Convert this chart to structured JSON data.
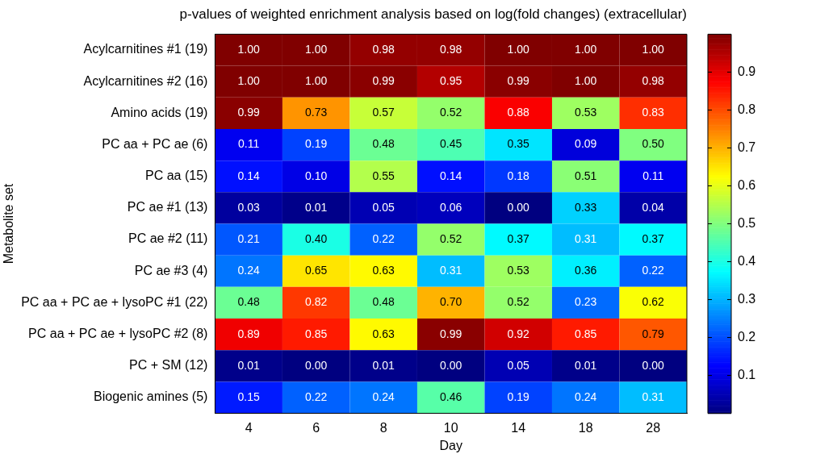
{
  "chart_data": {
    "type": "heatmap",
    "title": "p-values of weighted enrichment analysis based on log(fold changes) (extracellular)",
    "xlabel": "Day",
    "ylabel": "Metabolite set",
    "categories": [
      "4",
      "6",
      "8",
      "10",
      "14",
      "18",
      "28"
    ],
    "y_categories": [
      "Acylcarnitines #1 (19)",
      "Acylcarnitines #2 (16)",
      "Amino acids (19)",
      "PC aa + PC ae (6)",
      "PC aa (15)",
      "PC ae #1 (13)",
      "PC ae #2 (11)",
      "PC ae #3 (4)",
      "PC aa + PC ae + lysoPC #1 (22)",
      "PC aa + PC ae + lysoPC #2 (8)",
      "PC + SM (12)",
      "Biogenic amines (5)"
    ],
    "cells": [
      [
        1.0,
        1.0,
        0.98,
        0.98,
        1.0,
        1.0,
        1.0
      ],
      [
        1.0,
        1.0,
        0.99,
        0.95,
        0.99,
        1.0,
        0.98
      ],
      [
        0.99,
        0.73,
        0.57,
        0.52,
        0.88,
        0.53,
        0.83
      ],
      [
        0.11,
        0.19,
        0.48,
        0.45,
        0.35,
        0.09,
        0.5
      ],
      [
        0.14,
        0.1,
        0.55,
        0.14,
        0.18,
        0.51,
        0.11
      ],
      [
        0.03,
        0.01,
        0.05,
        0.06,
        0.0,
        0.33,
        0.04
      ],
      [
        0.21,
        0.4,
        0.22,
        0.52,
        0.37,
        0.31,
        0.37
      ],
      [
        0.24,
        0.65,
        0.63,
        0.31,
        0.53,
        0.36,
        0.22
      ],
      [
        0.48,
        0.82,
        0.48,
        0.7,
        0.52,
        0.23,
        0.62
      ],
      [
        0.89,
        0.85,
        0.63,
        0.99,
        0.92,
        0.85,
        0.79
      ],
      [
        0.01,
        0.0,
        0.01,
        0.0,
        0.05,
        0.01,
        0.0
      ],
      [
        0.15,
        0.22,
        0.24,
        0.46,
        0.19,
        0.24,
        0.31
      ]
    ],
    "cell_labels": [
      [
        "1.00",
        "1.00",
        "0.98",
        "0.98",
        "1.00",
        "1.00",
        "1.00"
      ],
      [
        "1.00",
        "1.00",
        "0.99",
        "0.95",
        "0.99",
        "1.00",
        "0.98"
      ],
      [
        "0.99",
        "0.73",
        "0.57",
        "0.52",
        "0.88",
        "0.53",
        "0.83"
      ],
      [
        "0.11",
        "0.19",
        "0.48",
        "0.45",
        "0.35",
        "0.09",
        "0.50"
      ],
      [
        "0.14",
        "0.10",
        "0.55",
        "0.14",
        "0.18",
        "0.51",
        "0.11"
      ],
      [
        "0.03",
        "0.01",
        "0.05",
        "0.06",
        "0.00",
        "0.33",
        "0.04"
      ],
      [
        "0.21",
        "0.40",
        "0.22",
        "0.52",
        "0.37",
        "0.31",
        "0.37"
      ],
      [
        "0.24",
        "0.65",
        "0.63",
        "0.31",
        "0.53",
        "0.36",
        "0.22"
      ],
      [
        "0.48",
        "0.82",
        "0.48",
        "0.70",
        "0.52",
        "0.23",
        "0.62"
      ],
      [
        "0.89",
        "0.85",
        "0.63",
        "0.99",
        "0.92",
        "0.85",
        "0.79"
      ],
      [
        "0.01",
        "0.00",
        "0.01",
        "0.00",
        "0.05",
        "0.01",
        "0.00"
      ],
      [
        "0.15",
        "0.22",
        "0.24",
        "0.46",
        "0.19",
        "0.24",
        "0.31"
      ]
    ],
    "clim": [
      0,
      1
    ],
    "cticks": [
      0.1,
      0.2,
      0.3,
      0.4,
      0.5,
      0.6,
      0.7,
      0.8,
      0.9
    ],
    "legend": false,
    "grid": false
  }
}
